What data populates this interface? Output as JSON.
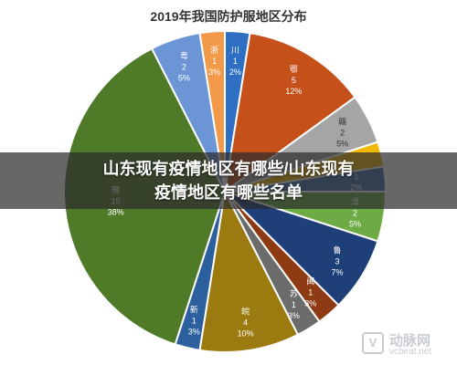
{
  "chart_data": {
    "type": "pie",
    "title": "2019年我国防护服地区分布",
    "slices": [
      {
        "label": "川",
        "count": "1",
        "percent": "2%",
        "value": 2.5,
        "color": "#2e6fc4",
        "text_color": "#ffffff"
      },
      {
        "label": "鄂",
        "count": "5",
        "percent": "12%",
        "value": 12.5,
        "color": "#c5501a",
        "text_color": "#ffffff"
      },
      {
        "label": "赣",
        "count": "2",
        "percent": "5%",
        "value": 5,
        "color": "#a5a5a5",
        "text_color": "#333333"
      },
      {
        "label": "",
        "count": "",
        "percent": "",
        "value": 2.5,
        "color": "#f0b800",
        "text_color": "#333333"
      },
      {
        "label": "",
        "count": "1",
        "percent": "2%",
        "value": 2.5,
        "color": "#3e6fb0",
        "text_color": "#ffffff"
      },
      {
        "label": "津",
        "count": "2",
        "percent": "5%",
        "value": 5,
        "color": "#6dac45",
        "text_color": "#ffffff"
      },
      {
        "label": "鲁",
        "count": "3",
        "percent": "7%",
        "value": 7.5,
        "color": "#1f3f78",
        "text_color": "#ffffff"
      },
      {
        "label": "闽",
        "count": "1",
        "percent": "3%",
        "value": 2.5,
        "color": "#8e3b13",
        "text_color": "#ffffff"
      },
      {
        "label": "苏",
        "count": "1",
        "percent": "3%",
        "value": 2.5,
        "color": "#6b6b6b",
        "text_color": "#ffffff"
      },
      {
        "label": "皖",
        "count": "4",
        "percent": "10%",
        "value": 10,
        "color": "#9b7a10",
        "text_color": "#ffffff"
      },
      {
        "label": "新",
        "count": "1",
        "percent": "3%",
        "value": 2.5,
        "color": "#2c5f9e",
        "text_color": "#ffffff"
      },
      {
        "label": "豫",
        "count": "15",
        "percent": "38%",
        "value": 37.5,
        "color": "#4f7a28",
        "text_color": "#ffffff"
      },
      {
        "label": "粤",
        "count": "2",
        "percent": "5%",
        "value": 5,
        "color": "#6c95d6",
        "text_color": "#ffffff"
      },
      {
        "label": "浙",
        "count": "1",
        "percent": "3%",
        "value": 2.5,
        "color": "#f39a4a",
        "text_color": "#ffffff"
      }
    ]
  },
  "overlay": {
    "line1": "山东现有疫情地区有哪些/山东现有",
    "line2": "疫情地区有哪些名单"
  },
  "watermark": {
    "logo": "V",
    "name": "动脉网",
    "url": "vcbeat.net"
  }
}
